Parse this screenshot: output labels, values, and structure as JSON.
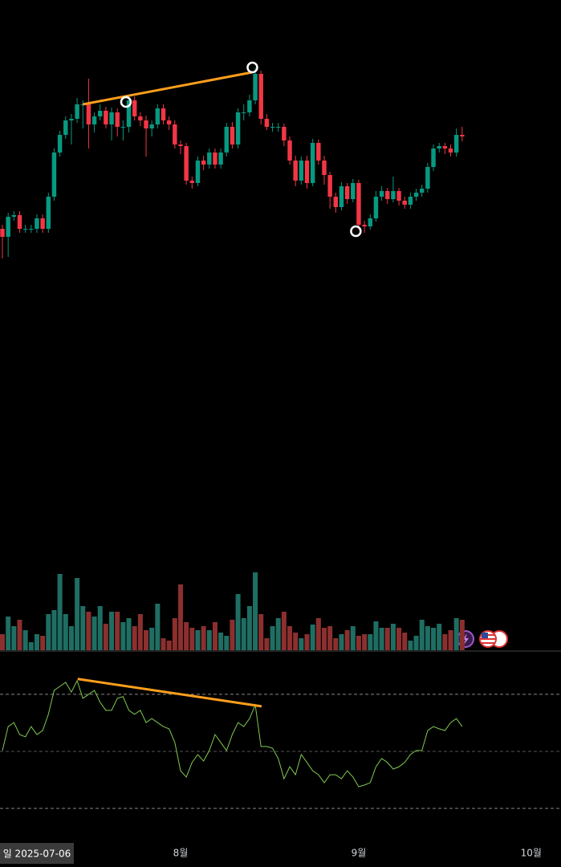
{
  "chart_data": {
    "type": "candlestick",
    "x": [
      0,
      1,
      2,
      3,
      4,
      5,
      6,
      7,
      8,
      9,
      10,
      11,
      12,
      13,
      14,
      15,
      16,
      17,
      18,
      19,
      20,
      21,
      22,
      23,
      24,
      25,
      26,
      27,
      28,
      29,
      30,
      31,
      32,
      33,
      34,
      35,
      36,
      37,
      38,
      39,
      40,
      41,
      42,
      43,
      44,
      45,
      46,
      47,
      48,
      49,
      50,
      51,
      52,
      53,
      54,
      55,
      56,
      57,
      58,
      59,
      60,
      61,
      62,
      63,
      64,
      65,
      66,
      67,
      68,
      69,
      70,
      71,
      72,
      73,
      74,
      75,
      76,
      77,
      78,
      79,
      80
    ],
    "open": [
      715,
      705,
      730,
      732,
      715,
      715,
      715,
      728,
      715,
      755,
      810,
      832,
      850,
      852,
      870,
      870,
      845,
      855,
      862,
      845,
      860,
      842,
      842,
      875,
      855,
      850,
      840,
      845,
      865,
      850,
      845,
      820,
      818,
      775,
      772,
      800,
      795,
      810,
      795,
      810,
      842,
      820,
      860,
      860,
      875,
      908,
      852,
      842,
      842,
      842,
      825,
      800,
      775,
      800,
      772,
      822,
      800,
      782,
      755,
      742,
      768,
      752,
      772,
      720,
      718,
      728,
      755,
      762,
      752,
      762,
      750,
      745,
      755,
      760,
      765,
      792,
      815,
      818,
      815,
      810,
      832
    ],
    "high": [
      720,
      735,
      737,
      737,
      720,
      720,
      733,
      733,
      760,
      815,
      837,
      855,
      858,
      878,
      875,
      902,
      860,
      870,
      867,
      866,
      865,
      850,
      880,
      880,
      860,
      856,
      850,
      870,
      870,
      855,
      850,
      825,
      822,
      780,
      805,
      806,
      815,
      815,
      815,
      847,
      848,
      865,
      870,
      882,
      916,
      912,
      858,
      847,
      847,
      846,
      830,
      806,
      805,
      806,
      827,
      826,
      806,
      786,
      760,
      773,
      772,
      777,
      776,
      725,
      733,
      762,
      768,
      766,
      780,
      766,
      755,
      760,
      765,
      770,
      797,
      820,
      822,
      822,
      820,
      840,
      842
    ],
    "low": [
      678,
      680,
      725,
      710,
      710,
      710,
      710,
      710,
      710,
      750,
      805,
      827,
      820,
      847,
      840,
      815,
      835,
      850,
      840,
      825,
      830,
      825,
      835,
      850,
      843,
      805,
      830,
      840,
      845,
      838,
      815,
      808,
      770,
      765,
      768,
      788,
      790,
      790,
      790,
      805,
      815,
      815,
      850,
      855,
      870,
      845,
      838,
      836,
      836,
      818,
      795,
      768,
      770,
      765,
      768,
      795,
      770,
      740,
      735,
      738,
      746,
      748,
      714,
      710,
      714,
      724,
      750,
      746,
      748,
      744,
      740,
      740,
      750,
      755,
      760,
      787,
      810,
      808,
      805,
      805,
      824
    ],
    "close": [
      705,
      730,
      732,
      715,
      715,
      715,
      728,
      715,
      755,
      810,
      832,
      850,
      852,
      870,
      870,
      845,
      855,
      862,
      845,
      860,
      842,
      842,
      875,
      855,
      850,
      840,
      845,
      865,
      850,
      845,
      820,
      818,
      775,
      772,
      800,
      795,
      810,
      795,
      810,
      842,
      820,
      860,
      860,
      875,
      908,
      852,
      842,
      842,
      842,
      825,
      800,
      775,
      800,
      772,
      822,
      800,
      782,
      755,
      742,
      768,
      752,
      772,
      720,
      718,
      728,
      755,
      762,
      752,
      762,
      750,
      745,
      755,
      760,
      765,
      792,
      815,
      818,
      815,
      810,
      832,
      830
    ],
    "up_color": "#089981",
    "down_color": "#f23645",
    "xlim": [
      -0.42,
      97.2
    ],
    "ylim": [
      300,
      1000
    ],
    "xticks": [
      {
        "value": 31,
        "label": "8월"
      },
      {
        "value": 62,
        "label": "9월"
      },
      {
        "value": 92,
        "label": "10월"
      }
    ],
    "cursor": {
      "value": 5,
      "label": "일 2025-07-06"
    },
    "trendline": {
      "x": [
        14,
        43.5
      ],
      "y": [
        870,
        910
      ],
      "color": "#ff9f1c"
    },
    "pivots": {
      "x": [
        21.5,
        43.5,
        61.5
      ],
      "y": [
        873,
        916,
        712
      ]
    },
    "volume": {
      "values": [
        20,
        42,
        30,
        38,
        25,
        10,
        20,
        18,
        45,
        50,
        95,
        45,
        30,
        90,
        55,
        48,
        42,
        55,
        33,
        48,
        48,
        35,
        40,
        30,
        45,
        25,
        28,
        58,
        15,
        12,
        40,
        82,
        35,
        28,
        25,
        30,
        25,
        35,
        22,
        18,
        38,
        70,
        40,
        55,
        97,
        45,
        15,
        30,
        40,
        48,
        30,
        22,
        15,
        20,
        32,
        40,
        28,
        30,
        15,
        20,
        25,
        30,
        18,
        20,
        20,
        36,
        28,
        28,
        33,
        28,
        22,
        12,
        18,
        38,
        30,
        28,
        33,
        20,
        25,
        40,
        38
      ],
      "ylim": [
        0,
        100
      ],
      "up_color": "#1f6e63",
      "down_color": "#8c2f2f"
    },
    "rsi": {
      "values": [
        50.3,
        58.7,
        60.1,
        55.9,
        55.1,
        58.7,
        55.9,
        57.3,
        63.0,
        71.4,
        72.8,
        74.2,
        70.8,
        74.8,
        68.6,
        70.0,
        71.4,
        67.2,
        64.4,
        64.4,
        68.6,
        69.2,
        64.4,
        63.0,
        64.4,
        60.1,
        61.5,
        60.1,
        58.7,
        57.9,
        53.1,
        43.2,
        41.0,
        46.1,
        48.9,
        46.6,
        50.3,
        55.9,
        53.1,
        50.3,
        55.9,
        60.1,
        58.7,
        61.5,
        66.3,
        51.7,
        51.7,
        51.1,
        47.5,
        40.4,
        44.6,
        41.8,
        48.9,
        46.1,
        43.2,
        41.8,
        39.0,
        41.8,
        41.8,
        40.4,
        43.2,
        41.0,
        37.6,
        38.2,
        39.0,
        44.6,
        47.5,
        46.1,
        43.8,
        44.6,
        46.1,
        48.9,
        50.3,
        50.3,
        57.3,
        58.7,
        57.9,
        57.3,
        60.1,
        61.5,
        58.7
      ],
      "ylim": [
        19.3,
        84.9
      ],
      "levels": [
        30,
        50,
        70
      ],
      "color": "#81c94f",
      "trendline": {
        "x": [
          13.1,
          45.1
        ],
        "y": [
          75.4,
          65.8
        ],
        "color": "#ff9f1c"
      }
    }
  }
}
